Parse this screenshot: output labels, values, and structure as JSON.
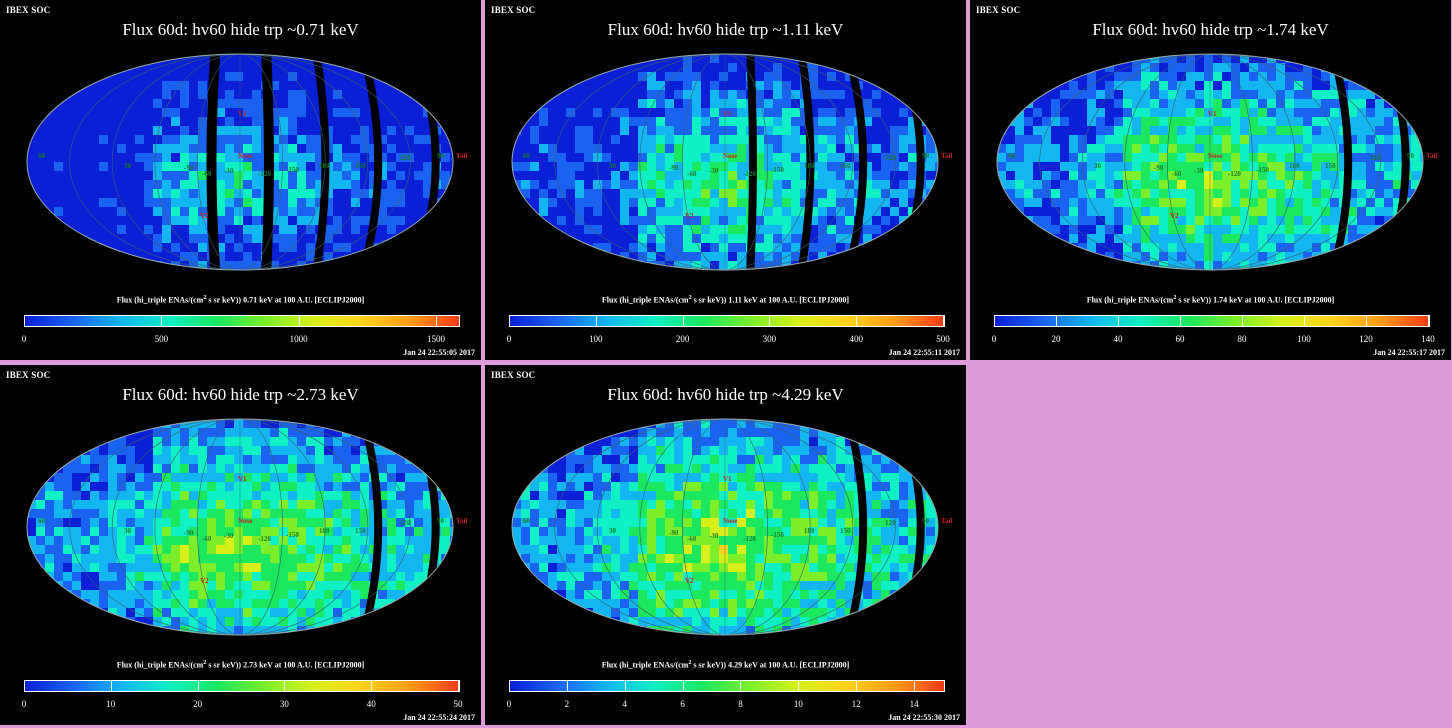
{
  "header": "IBEX SOC",
  "caption_prefix": "Flux (hi_triple ENAs/(cm",
  "caption_sup": "2",
  "caption_mid": " s sr keV))",
  "caption_suffix": "keV at 100 A.U. [ECLIPJ2000]",
  "map_labels": {
    "nose": "Nose",
    "v1": "V1",
    "v2": "V2",
    "tail": "Tail",
    "lons": [
      "60",
      "30",
      "-90",
      "-60",
      "-30",
      "-120",
      "-150",
      "180",
      "150",
      "120",
      "90"
    ]
  },
  "colormap": [
    "#0a1fd6",
    "#1a63f0",
    "#13b6f0",
    "#0ff0c4",
    "#1be85e",
    "#7cef2a",
    "#d8f01a",
    "#ffd21a",
    "#ff9a17",
    "#f73a15"
  ],
  "panels": [
    {
      "title": "Flux   60d: hv60 hide trp ~0.71 keV",
      "energy": "0.71",
      "timestamp": "Jan 24 22:55:05 2017",
      "ticks": [
        "0",
        "500",
        "1000",
        "1500"
      ],
      "max": 1580
    },
    {
      "title": "Flux   60d: hv60 hide trp ~1.11 keV",
      "energy": "1.11",
      "timestamp": "Jan 24 22:55:11 2017",
      "ticks": [
        "0",
        "100",
        "200",
        "300",
        "400",
        "500"
      ],
      "max": 500
    },
    {
      "title": "Flux   60d: hv60 hide trp ~1.74 keV",
      "energy": "1.74",
      "timestamp": "Jan 24 22:55:17 2017",
      "ticks": [
        "0",
        "20",
        "40",
        "60",
        "80",
        "100",
        "120",
        "140"
      ],
      "max": 140
    },
    {
      "title": "Flux   60d: hv60 hide trp ~2.73 keV",
      "energy": "2.73",
      "timestamp": "Jan 24 22:55:24 2017",
      "ticks": [
        "0",
        "10",
        "20",
        "30",
        "40",
        "50"
      ],
      "max": 50
    },
    {
      "title": "Flux   60d: hv60 hide trp ~4.29 keV",
      "energy": "4.29",
      "timestamp": "Jan 24 22:55:30 2017",
      "ticks": [
        "0",
        "2",
        "4",
        "6",
        "8",
        "10",
        "12",
        "14"
      ],
      "max": 15
    }
  ]
}
